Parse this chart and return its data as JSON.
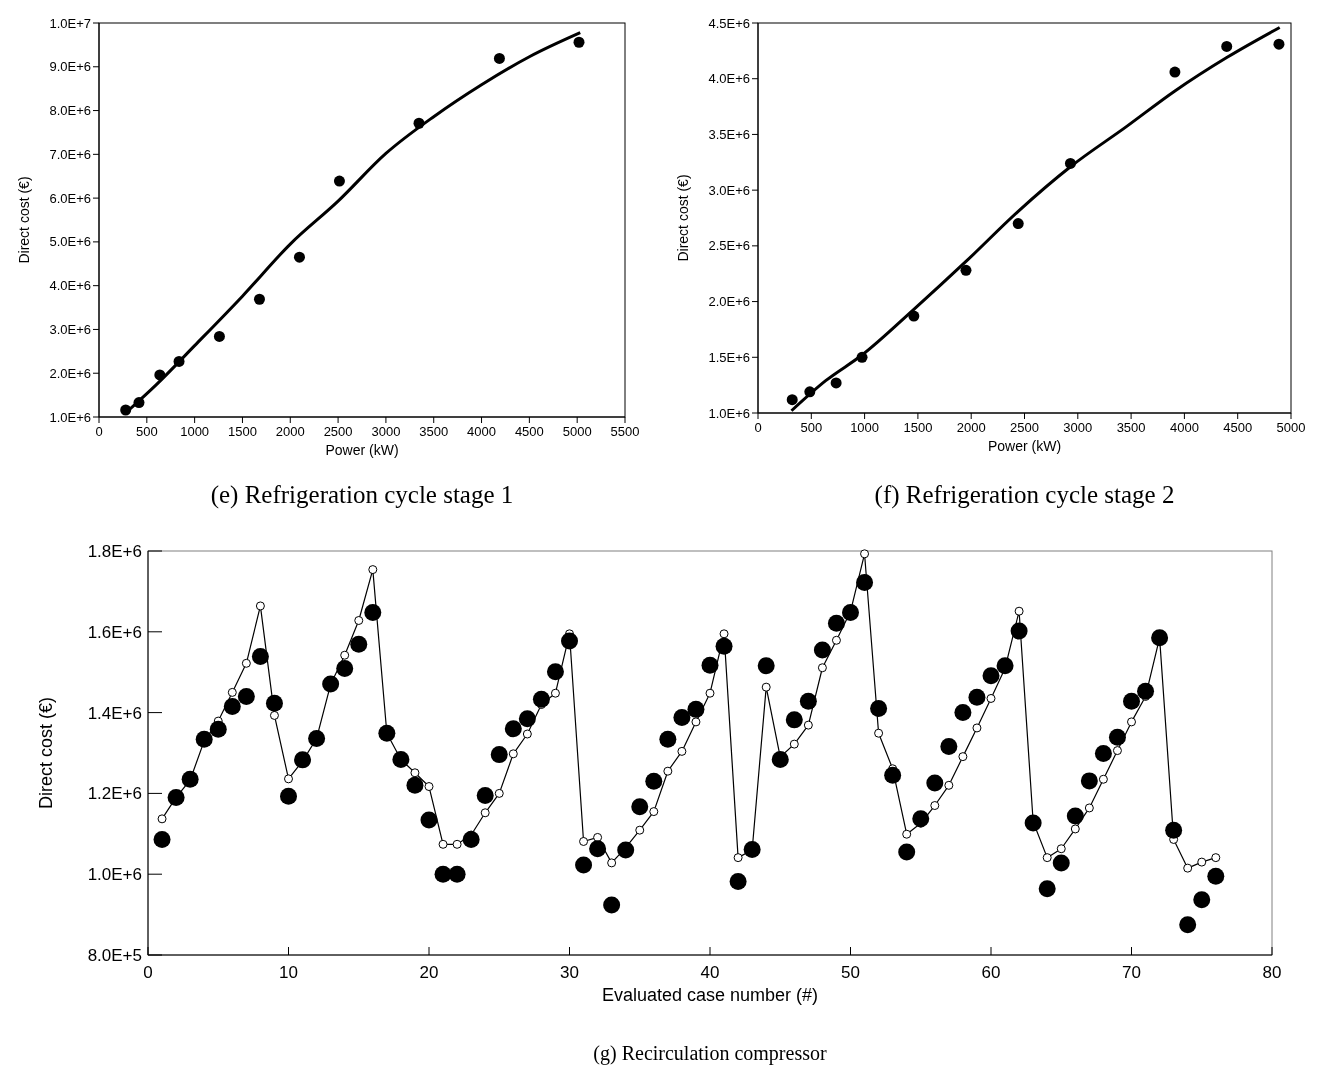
{
  "chart_data": [
    {
      "type": "scatter",
      "title": "(e)  Refrigeration cycle stage 1",
      "xlabel": "Power (kW)",
      "ylabel": "Direct cost (€)",
      "marker": "circle",
      "xlim": [
        0,
        5500
      ],
      "xticks": [
        0,
        500,
        1000,
        1500,
        2000,
        2500,
        3000,
        3500,
        4000,
        4500,
        5000,
        5500
      ],
      "ylim": [
        1000000,
        10000000
      ],
      "yticks": [
        {
          "value": 1000000,
          "label": "1.0E+6"
        },
        {
          "value": 2000000,
          "label": "2.0E+6"
        },
        {
          "value": 3000000,
          "label": "3.0E+6"
        },
        {
          "value": 4000000,
          "label": "4.0E+6"
        },
        {
          "value": 5000000,
          "label": "5.0E+6"
        },
        {
          "value": 6000000,
          "label": "6.0E+6"
        },
        {
          "value": 7000000,
          "label": "7.0E+6"
        },
        {
          "value": 8000000,
          "label": "8.0E+6"
        },
        {
          "value": 9000000,
          "label": "9.0E+6"
        },
        {
          "value": 10000000,
          "label": "1.0E+7"
        }
      ],
      "series": [
        {
          "color": "#000000",
          "x": [
            279,
            418,
            636,
            837,
            1259,
            1678,
            2096,
            2514,
            3346,
            4187,
            5019
          ],
          "values": [
            1160000,
            1330000,
            1960000,
            2270000,
            2840000,
            3690000,
            4650000,
            6390000,
            7710000,
            9190000,
            9560000
          ]
        },
        {
          "type": "line",
          "color": "#000000",
          "marker": "none",
          "x": [
            292,
            600,
            1000,
            1500,
            2000,
            2500,
            3000,
            3500,
            4000,
            4500,
            5032
          ],
          "values": [
            1120000,
            1740000,
            2630000,
            3760000,
            4950000,
            5930000,
            7020000,
            7860000,
            8590000,
            9230000,
            9780000
          ]
        }
      ]
    },
    {
      "type": "scatter",
      "title": "(f)  Refrigeration cycle stage 2",
      "xlabel": "Power (kW)",
      "ylabel": "Direct cost (€)",
      "marker": "circle",
      "xlim": [
        0,
        5000
      ],
      "xticks": [
        0,
        500,
        1000,
        1500,
        2000,
        2500,
        3000,
        3500,
        4000,
        4500,
        5000
      ],
      "ylim": [
        1000000,
        4500000
      ],
      "yticks": [
        {
          "value": 1000000,
          "label": "1.0E+6"
        },
        {
          "value": 1500000,
          "label": "1.5E+6"
        },
        {
          "value": 2000000,
          "label": "2.0E+6"
        },
        {
          "value": 2500000,
          "label": "2.5E+6"
        },
        {
          "value": 3000000,
          "label": "3.0E+6"
        },
        {
          "value": 3500000,
          "label": "3.5E+6"
        },
        {
          "value": 4000000,
          "label": "4.0E+6"
        },
        {
          "value": 4500000,
          "label": "4.5E+6"
        }
      ],
      "series": [
        {
          "color": "#000000",
          "x": [
            321,
            486,
            733,
            976,
            1462,
            1951,
            2441,
            2931,
            3911,
            4397,
            4887
          ],
          "values": [
            1120000,
            1190000,
            1270000,
            1500000,
            1870000,
            2280000,
            2700000,
            3240000,
            4060000,
            4290000,
            4310000
          ]
        },
        {
          "type": "line",
          "color": "#000000",
          "marker": "none",
          "x": [
            314,
            635,
            976,
            1462,
            1951,
            2441,
            2931,
            3456,
            3911,
            4397,
            4894
          ],
          "values": [
            1020000,
            1290000,
            1520000,
            1930000,
            2360000,
            2810000,
            3210000,
            3570000,
            3890000,
            4190000,
            4460000
          ]
        }
      ]
    },
    {
      "type": "scatter",
      "title": "(g)  Recirculation compressor",
      "xlabel": "Evaluated case number (#)",
      "ylabel": "Direct cost (€)",
      "marker": "circle",
      "xlim": [
        0,
        80
      ],
      "xticks": [
        0,
        10,
        20,
        30,
        40,
        50,
        60,
        70,
        80
      ],
      "ylim": [
        800000,
        1800000
      ],
      "yticks": [
        {
          "value": 800000,
          "label": "8.0E+5"
        },
        {
          "value": 1000000,
          "label": "1.0E+6"
        },
        {
          "value": 1200000,
          "label": "1.2E+6"
        },
        {
          "value": 1400000,
          "label": "1.4E+6"
        },
        {
          "value": 1600000,
          "label": "1.6E+6"
        },
        {
          "value": 1800000,
          "label": "1.8E+6"
        }
      ],
      "x": [
        1,
        2,
        3,
        4,
        5,
        6,
        7,
        8,
        9,
        10,
        11,
        12,
        13,
        14,
        15,
        16,
        17,
        18,
        19,
        20,
        21,
        22,
        23,
        24,
        25,
        26,
        27,
        28,
        29,
        30,
        31,
        32,
        33,
        34,
        35,
        36,
        37,
        38,
        39,
        40,
        41,
        42,
        43,
        44,
        45,
        46,
        47,
        48,
        49,
        50,
        51,
        52,
        53,
        54,
        55,
        56,
        57,
        58,
        59,
        60,
        61,
        62,
        63,
        64,
        65,
        66,
        67,
        68,
        69,
        70,
        71,
        72,
        73,
        74,
        75,
        76
      ],
      "series": [
        {
          "type": "line",
          "color": "#000000",
          "marker": "circle",
          "values": [
            1137000,
            1190000,
            1233000,
            1330000,
            1379000,
            1450000,
            1522000,
            1664000,
            1393000,
            1236000,
            1280000,
            1336000,
            1470000,
            1542000,
            1628000,
            1754000,
            1349000,
            1284000,
            1251000,
            1217000,
            1074000,
            1074000,
            1097000,
            1152000,
            1200000,
            1298000,
            1347000,
            1420000,
            1448000,
            1595000,
            1081000,
            1091000,
            1028000,
            1066000,
            1109000,
            1155000,
            1255000,
            1304000,
            1377000,
            1448000,
            1595000,
            1041000,
            1060000,
            1463000,
            1290000,
            1322000,
            1369000,
            1511000,
            1579000,
            1650000,
            1793000,
            1349000,
            1261000,
            1099000,
            1126000,
            1170000,
            1220000,
            1291000,
            1362000,
            1435000,
            1510000,
            1651000,
            1130000,
            1041000,
            1063000,
            1112000,
            1164000,
            1235000,
            1306000,
            1377000,
            1440000,
            1585000,
            1086000,
            1015000,
            1030000,
            1041000
          ]
        },
        {
          "color": "#000000",
          "values": [
            1086000,
            1190000,
            1235000,
            1334000,
            1359000,
            1415000,
            1440000,
            1539000,
            1423000,
            1193000,
            1283000,
            1336000,
            1471000,
            1509000,
            1569000,
            1648000,
            1349000,
            1284000,
            1220000,
            1134000,
            1000000,
            1000000,
            1086000,
            1195000,
            1296000,
            1360000,
            1385000,
            1433000,
            1501000,
            1577000,
            1023000,
            1063000,
            924000,
            1060000,
            1167000,
            1230000,
            1334000,
            1388000,
            1408000,
            1517000,
            1564000,
            982000,
            1061000,
            1516000,
            1284000,
            1382000,
            1428000,
            1555000,
            1621000,
            1648000,
            1722000,
            1410000,
            1245000,
            1055000,
            1137000,
            1226000,
            1316000,
            1400000,
            1438000,
            1491000,
            1516000,
            1602000,
            1127000,
            964000,
            1028000,
            1144000,
            1231000,
            1299000,
            1339000,
            1428000,
            1453000,
            1585000,
            1109000,
            875000,
            937000,
            995000
          ]
        }
      ]
    }
  ]
}
